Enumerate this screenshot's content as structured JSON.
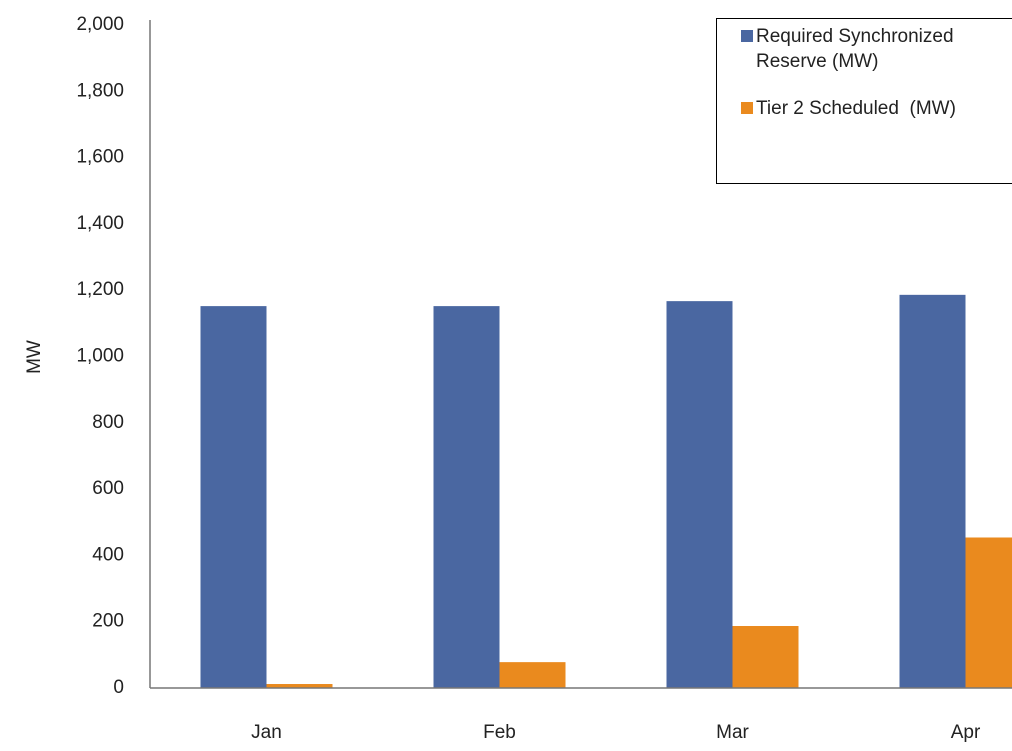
{
  "chart_data": {
    "type": "bar",
    "y_label": "MW",
    "categories": [
      "Jan",
      "Feb",
      "Mar",
      "Apr"
    ],
    "series": [
      {
        "name": "Required Synchronized Reserve (MW)",
        "color": "#4a67a1",
        "values": [
          1152,
          1152,
          1167,
          1186
        ]
      },
      {
        "name": "Tier 2 Scheduled  (MW)",
        "color": "#ea8a1e",
        "values": [
          12,
          78,
          187,
          454
        ]
      }
    ],
    "ylim": [
      0,
      2000
    ],
    "yticks": [
      0,
      200,
      400,
      600,
      800,
      {
        "value": 1000,
        "label": "1,000"
      },
      {
        "value": 1200,
        "label": "1,200"
      },
      {
        "value": 1400,
        "label": "1,400"
      },
      {
        "value": 1600,
        "label": "1,600"
      },
      {
        "value": 1800,
        "label": "1,800"
      },
      {
        "value": 2000,
        "label": "2,000"
      }
    ],
    "grid": false,
    "legend": "upper right"
  }
}
